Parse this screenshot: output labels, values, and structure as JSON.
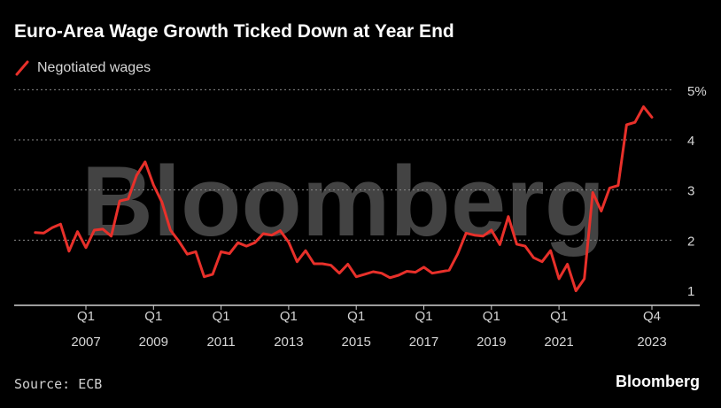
{
  "title": "Euro-Area Wage Growth Ticked Down at Year End",
  "source": "Source: ECB",
  "brand": "Bloomberg",
  "watermark": "Bloomberg",
  "colors": {
    "line": "#e8302a",
    "background": "#000000",
    "grid": "#8a8a8a",
    "axis": "#cfcfcf"
  },
  "chart_data": {
    "type": "line",
    "title": "Euro-Area Wage Growth Ticked Down at Year End",
    "xlabel": "",
    "ylabel": "",
    "ylim": [
      0.65,
      5.2
    ],
    "y_ticks": [
      {
        "value": 1,
        "label": "1"
      },
      {
        "value": 2,
        "label": "2"
      },
      {
        "value": 3,
        "label": "3"
      },
      {
        "value": 4,
        "label": "4"
      },
      {
        "value": 5,
        "label": "5%"
      }
    ],
    "x_ticks": [
      {
        "q": 2007.0,
        "top": "Q1",
        "bottom": "2007"
      },
      {
        "q": 2009.0,
        "top": "Q1",
        "bottom": "2009"
      },
      {
        "q": 2011.0,
        "top": "Q1",
        "bottom": "2011"
      },
      {
        "q": 2013.0,
        "top": "Q1",
        "bottom": "2013"
      },
      {
        "q": 2015.0,
        "top": "Q1",
        "bottom": "2015"
      },
      {
        "q": 2017.0,
        "top": "Q1",
        "bottom": "2017"
      },
      {
        "q": 2019.0,
        "top": "Q1",
        "bottom": "2019"
      },
      {
        "q": 2021.0,
        "top": "Q1",
        "bottom": "2021"
      },
      {
        "q": 2023.75,
        "top": "Q4",
        "bottom": "2023"
      }
    ],
    "series": [
      {
        "name": "Negotiated wages",
        "x_start": 2005.5,
        "step": 0.25,
        "values": [
          2.15,
          2.14,
          2.25,
          2.32,
          1.78,
          2.17,
          1.85,
          2.2,
          2.22,
          2.08,
          2.78,
          2.82,
          3.29,
          3.56,
          3.1,
          2.76,
          2.2,
          1.98,
          1.72,
          1.77,
          1.27,
          1.32,
          1.77,
          1.73,
          1.95,
          1.88,
          1.95,
          2.13,
          2.1,
          2.19,
          1.96,
          1.57,
          1.79,
          1.53,
          1.53,
          1.5,
          1.34,
          1.52,
          1.27,
          1.32,
          1.37,
          1.34,
          1.25,
          1.3,
          1.38,
          1.36,
          1.46,
          1.34,
          1.37,
          1.4,
          1.72,
          2.14,
          2.1,
          2.08,
          2.2,
          1.91,
          2.47,
          1.92,
          1.88,
          1.65,
          1.57,
          1.79,
          1.23,
          1.52,
          0.99,
          1.23,
          2.95,
          2.58,
          3.04,
          3.09,
          4.3,
          4.35,
          4.66,
          4.45
        ]
      }
    ]
  },
  "legend": [
    {
      "label": "Negotiated wages"
    }
  ]
}
